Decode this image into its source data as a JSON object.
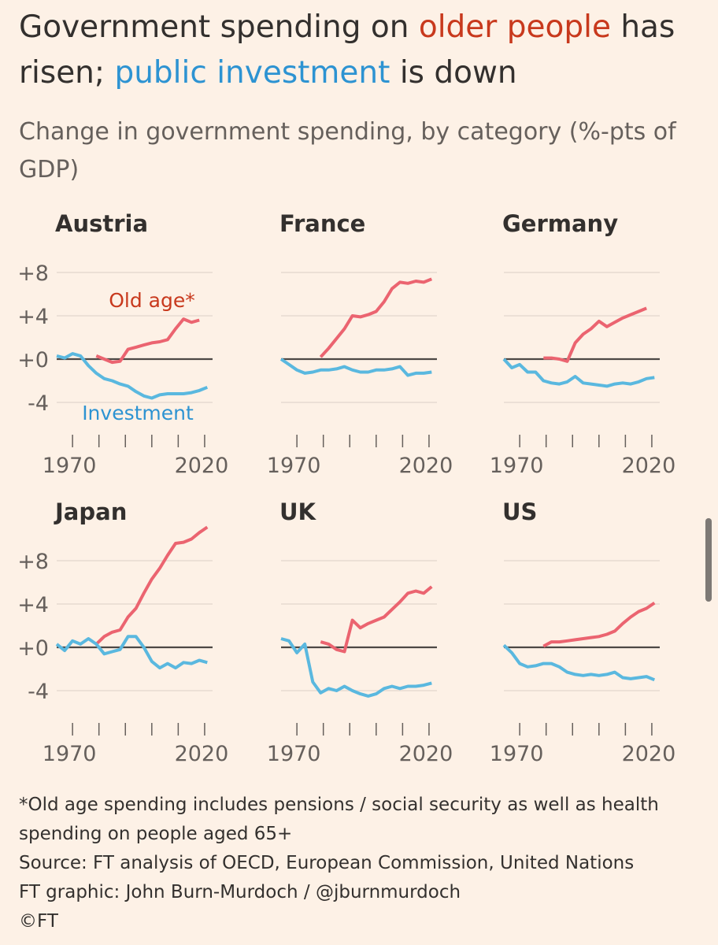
{
  "title": [
    "Government spending on",
    "older people",
    "has risen;",
    "public investment",
    "is down"
  ],
  "subtitle": "Change in government spending, by category (%-pts of GDP)",
  "chart_data": [
    {
      "type": "line",
      "title": "Austria",
      "x": [
        1964,
        1967,
        1970,
        1973,
        1976,
        1979,
        1982,
        1985,
        1988,
        1991,
        1994,
        1997,
        2000,
        2003,
        2006,
        2009,
        2012,
        2015,
        2018,
        2021
      ],
      "xlim": [
        1964,
        2023
      ],
      "xticks": [
        1970,
        2020
      ],
      "xminorticks": [
        1980,
        1990,
        2000,
        2010
      ],
      "ylim": [
        -6,
        12
      ],
      "yticks": [
        {
          "value": 8,
          "label": "+8"
        },
        {
          "value": 4,
          "label": "+4"
        },
        {
          "value": 0,
          "label": "+0"
        },
        -4
      ],
      "series": [
        {
          "name": "Old age*",
          "color": "#eb6470",
          "values": [
            null,
            null,
            null,
            null,
            null,
            0.3,
            0.0,
            -0.3,
            -0.2,
            0.9,
            1.1,
            1.3,
            1.5,
            1.6,
            1.8,
            2.8,
            3.7,
            3.4,
            3.6,
            null
          ]
        },
        {
          "name": "Investment",
          "color": "#5ab8df",
          "values": [
            0.3,
            0.1,
            0.5,
            0.3,
            -0.6,
            -1.3,
            -1.8,
            -2.0,
            -2.3,
            -2.5,
            -3.0,
            -3.4,
            -3.6,
            -3.3,
            -3.2,
            -3.2,
            -3.2,
            -3.1,
            -2.9,
            -2.6
          ]
        }
      ]
    },
    {
      "type": "line",
      "title": "France",
      "x": [
        1964,
        1967,
        1970,
        1973,
        1976,
        1979,
        1982,
        1985,
        1988,
        1991,
        1994,
        1997,
        2000,
        2003,
        2006,
        2009,
        2012,
        2015,
        2018,
        2021
      ],
      "xlim": [
        1964,
        2023
      ],
      "xticks": [
        1970,
        2020
      ],
      "xminorticks": [
        1980,
        1990,
        2000,
        2010
      ],
      "ylim": [
        -6,
        12
      ],
      "yticks": [
        8,
        4,
        0,
        -4
      ],
      "series": [
        {
          "color": "#eb6470",
          "values": [
            null,
            null,
            null,
            null,
            null,
            0.2,
            1.0,
            1.9,
            2.8,
            4.0,
            3.9,
            4.1,
            4.4,
            5.3,
            6.5,
            7.1,
            7.0,
            7.2,
            7.1,
            7.4
          ]
        },
        {
          "color": "#5ab8df",
          "values": [
            0,
            -0.5,
            -1.0,
            -1.3,
            -1.2,
            -1.0,
            -1.0,
            -0.9,
            -0.7,
            -1.0,
            -1.2,
            -1.2,
            -1.0,
            -1.0,
            -0.9,
            -0.7,
            -1.5,
            -1.3,
            -1.3,
            -1.2
          ]
        }
      ]
    },
    {
      "type": "line",
      "title": "Germany",
      "x": [
        1964,
        1967,
        1970,
        1973,
        1976,
        1979,
        1982,
        1985,
        1988,
        1991,
        1994,
        1997,
        2000,
        2003,
        2006,
        2009,
        2012,
        2015,
        2018,
        2021
      ],
      "xlim": [
        1964,
        2023
      ],
      "xticks": [
        1970,
        2020
      ],
      "xminorticks": [
        1980,
        1990,
        2000,
        2010
      ],
      "ylim": [
        -6,
        12
      ],
      "yticks": [
        8,
        4,
        0,
        -4
      ],
      "series": [
        {
          "color": "#eb6470",
          "values": [
            null,
            null,
            null,
            null,
            null,
            0.1,
            0.1,
            0.0,
            -0.2,
            1.5,
            2.3,
            2.8,
            3.5,
            3.0,
            3.4,
            3.8,
            4.1,
            4.4,
            4.7,
            null
          ]
        },
        {
          "color": "#5ab8df",
          "values": [
            0,
            -0.8,
            -0.5,
            -1.2,
            -1.2,
            -2.0,
            -2.2,
            -2.3,
            -2.1,
            -1.6,
            -2.2,
            -2.3,
            -2.4,
            -2.5,
            -2.3,
            -2.2,
            -2.3,
            -2.1,
            -1.8,
            -1.7
          ]
        }
      ]
    },
    {
      "type": "line",
      "title": "Japan",
      "x": [
        1964,
        1967,
        1970,
        1973,
        1976,
        1979,
        1982,
        1985,
        1988,
        1991,
        1994,
        1997,
        2000,
        2003,
        2006,
        2009,
        2012,
        2015,
        2018,
        2021
      ],
      "xlim": [
        1964,
        2023
      ],
      "xticks": [
        1970,
        2020
      ],
      "xminorticks": [
        1980,
        1990,
        2000,
        2010
      ],
      "ylim": [
        -6,
        12
      ],
      "yticks": [
        {
          "value": 8,
          "label": "+8"
        },
        {
          "value": 4,
          "label": "+4"
        },
        {
          "value": 0,
          "label": "+0"
        },
        -4
      ],
      "series": [
        {
          "color": "#eb6470",
          "values": [
            null,
            null,
            null,
            null,
            null,
            0.3,
            1.0,
            1.4,
            1.6,
            2.8,
            3.6,
            5.0,
            6.3,
            7.3,
            8.5,
            9.6,
            9.7,
            10.0,
            10.6,
            11.1
          ]
        },
        {
          "color": "#5ab8df",
          "values": [
            0.3,
            -0.3,
            0.6,
            0.3,
            0.8,
            0.3,
            -0.6,
            -0.4,
            -0.2,
            1.0,
            1.0,
            0.0,
            -1.3,
            -1.9,
            -1.5,
            -1.9,
            -1.4,
            -1.5,
            -1.2,
            -1.4
          ]
        }
      ]
    },
    {
      "type": "line",
      "title": "UK",
      "x": [
        1964,
        1967,
        1970,
        1973,
        1976,
        1979,
        1982,
        1985,
        1988,
        1991,
        1994,
        1997,
        2000,
        2003,
        2006,
        2009,
        2012,
        2015,
        2018,
        2021
      ],
      "xlim": [
        1964,
        2023
      ],
      "xticks": [
        1970,
        2020
      ],
      "xminorticks": [
        1980,
        1990,
        2000,
        2010
      ],
      "ylim": [
        -6,
        12
      ],
      "yticks": [
        8,
        4,
        0,
        -4
      ],
      "series": [
        {
          "color": "#eb6470",
          "values": [
            null,
            null,
            null,
            null,
            null,
            0.5,
            0.3,
            -0.2,
            -0.4,
            2.5,
            1.8,
            2.2,
            2.5,
            2.8,
            3.5,
            4.2,
            5.0,
            5.2,
            5.0,
            5.6
          ]
        },
        {
          "color": "#5ab8df",
          "values": [
            0.8,
            0.6,
            -0.5,
            0.3,
            -3.2,
            -4.2,
            -3.8,
            -4.0,
            -3.6,
            -4.0,
            -4.3,
            -4.5,
            -4.3,
            -3.8,
            -3.6,
            -3.8,
            -3.6,
            -3.6,
            -3.5,
            -3.3
          ]
        }
      ]
    },
    {
      "type": "line",
      "title": "US",
      "x": [
        1964,
        1967,
        1970,
        1973,
        1976,
        1979,
        1982,
        1985,
        1988,
        1991,
        1994,
        1997,
        2000,
        2003,
        2006,
        2009,
        2012,
        2015,
        2018,
        2021
      ],
      "xlim": [
        1964,
        2023
      ],
      "xticks": [
        1970,
        2020
      ],
      "xminorticks": [
        1980,
        1990,
        2000,
        2010
      ],
      "ylim": [
        -6,
        12
      ],
      "yticks": [
        8,
        4,
        0,
        -4
      ],
      "series": [
        {
          "color": "#eb6470",
          "values": [
            null,
            null,
            null,
            null,
            null,
            0.1,
            0.5,
            0.5,
            0.6,
            0.7,
            0.8,
            0.9,
            1.0,
            1.2,
            1.5,
            2.2,
            2.8,
            3.3,
            3.6,
            4.1
          ]
        },
        {
          "color": "#5ab8df",
          "values": [
            0.2,
            -0.5,
            -1.5,
            -1.8,
            -1.7,
            -1.5,
            -1.5,
            -1.8,
            -2.3,
            -2.5,
            -2.6,
            -2.5,
            -2.6,
            -2.5,
            -2.3,
            -2.8,
            -2.9,
            -2.8,
            -2.7,
            -3.0
          ]
        }
      ]
    }
  ],
  "notes": [
    "*Old age spending includes pensions / social security as well as health spending on people aged 65+",
    "Source: FT analysis of OECD, European Commission, United Nations",
    "FT graphic: John Burn-Murdoch / @jburnmurdoch",
    "©FT"
  ]
}
